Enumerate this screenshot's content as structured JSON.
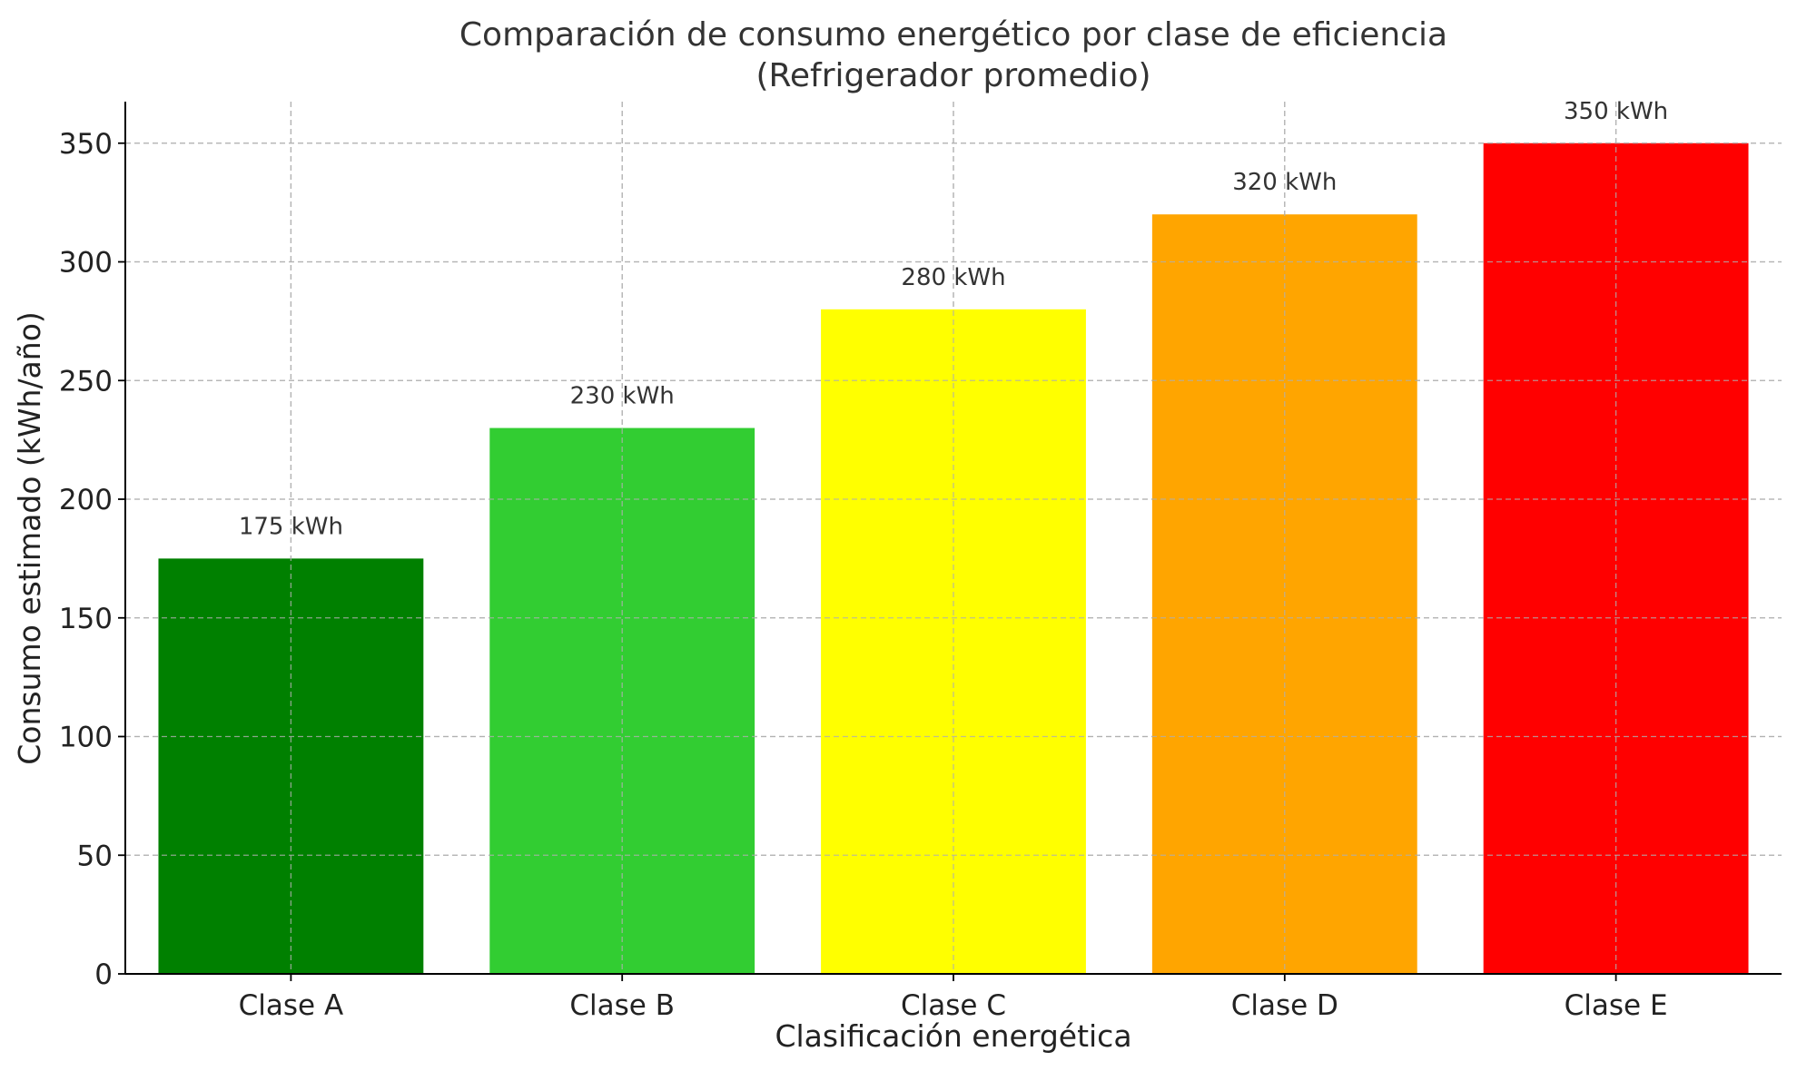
{
  "chart_data": {
    "type": "bar",
    "title": "Comparación de consumo energético por clase de eficiencia",
    "subtitle": "(Refrigerador promedio)",
    "xlabel": "Clasificación energética",
    "ylabel": "Consumo estimado (kWh/año)",
    "categories": [
      "Clase A",
      "Clase B",
      "Clase C",
      "Clase D",
      "Clase E"
    ],
    "values": [
      175,
      230,
      280,
      320,
      350
    ],
    "value_labels": [
      "175 kWh",
      "230 kWh",
      "280 kWh",
      "320 kWh",
      "350 kWh"
    ],
    "colors": [
      "#008000",
      "#32cd32",
      "#ffff00",
      "#ffa500",
      "#ff0000"
    ],
    "ylim": [
      0,
      367.5
    ],
    "yticks": [
      0,
      50,
      100,
      150,
      200,
      250,
      300,
      350
    ],
    "grid": true,
    "legend": "none"
  }
}
